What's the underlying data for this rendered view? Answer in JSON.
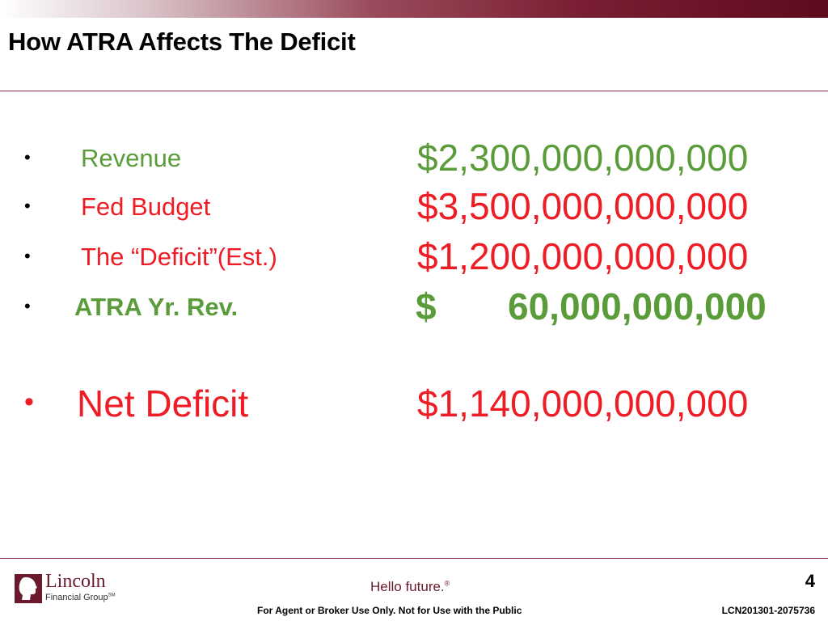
{
  "slide": {
    "title": "How ATRA Affects The Deficit"
  },
  "colors": {
    "green": "#5a9c3a",
    "red": "#ee1c25",
    "brand_maroon": "#6b1a2d"
  },
  "bullet_glyph": "•",
  "rows": [
    {
      "label": "Revenue",
      "amount": "$2,300,000,000,000",
      "color": "green"
    },
    {
      "label": "Fed Budget",
      "amount": "$3,500,000,000,000",
      "color": "red"
    },
    {
      "label": "The “Deficit”(Est.)",
      "amount": "$1,200,000,000,000",
      "color": "red"
    },
    {
      "label": "ATRA Yr. Rev.",
      "currency": "$",
      "amount": "60,000,000,000",
      "color": "green"
    },
    {
      "label": "Net Deficit",
      "amount": "$1,140,000,000,000",
      "color": "red"
    }
  ],
  "footer": {
    "logo_name": "Lincoln",
    "logo_sub": "Financial Group",
    "logo_mark": "SM",
    "logo_icon": "lincoln-profile-icon",
    "tagline": "Hello future.",
    "tagline_mark": "®",
    "page_number": "4",
    "disclaimer": "For Agent or Broker Use Only. Not for Use with the Public",
    "doc_code": "LCN201301-2075736"
  }
}
